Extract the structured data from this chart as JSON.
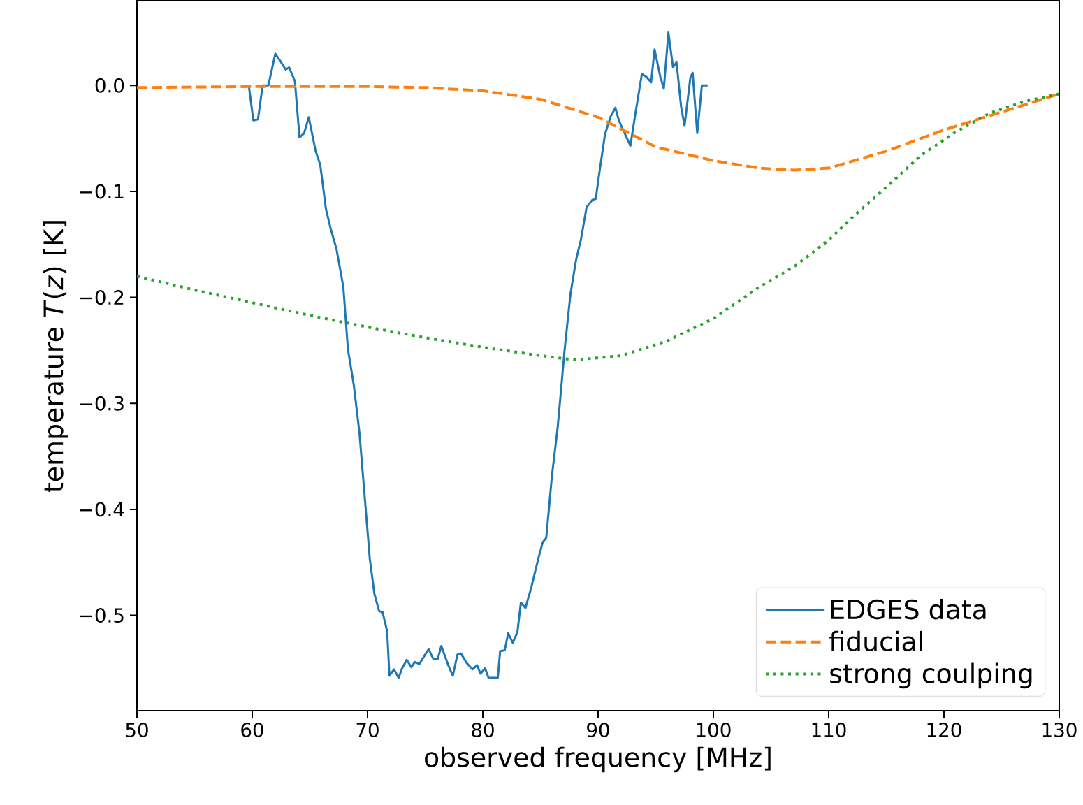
{
  "chart_data": {
    "type": "line",
    "xlabel": "observed frequency [MHz]",
    "ylabel": "temperature *T*(*z*) [K]",
    "xlim": [
      50,
      130
    ],
    "xticks": [
      50,
      60,
      70,
      80,
      90,
      100,
      110,
      120,
      130
    ],
    "ylim": [
      -0.59,
      0.08
    ],
    "yticks": [
      {
        "value": 0,
        "label": "0.0"
      },
      {
        "value": -0.1,
        "label": "−0.1"
      },
      {
        "value": -0.2,
        "label": "−0.2"
      },
      {
        "value": -0.3,
        "label": "−0.3"
      },
      {
        "value": -0.4,
        "label": "−0.4"
      },
      {
        "value": -0.5,
        "label": "−0.5"
      }
    ],
    "grid": false,
    "legend": "bottom right",
    "series": [
      {
        "name": "EDGES data",
        "color": "#1f77b4",
        "line_style": "solid",
        "x": [
          59.7,
          60.1,
          60.5,
          60.9,
          61.4,
          62.0,
          62.5,
          62.9,
          63.2,
          63.7,
          64.1,
          64.5,
          64.9,
          65.5,
          65.9,
          66.4,
          66.8,
          67.3,
          67.9,
          68.3,
          68.8,
          69.3,
          69.8,
          70.2,
          70.6,
          71.0,
          71.3,
          71.7,
          71.9,
          72.3,
          72.7,
          73.0,
          73.4,
          73.8,
          74.1,
          74.5,
          75.0,
          75.3,
          75.7,
          76.1,
          76.4,
          77.0,
          77.4,
          77.8,
          78.1,
          78.6,
          79.1,
          79.5,
          79.8,
          80.2,
          80.5,
          81.3,
          81.5,
          81.9,
          82.2,
          82.6,
          83.0,
          83.3,
          83.7,
          84.2,
          84.8,
          85.2,
          85.5,
          86.0,
          86.5,
          87.1,
          87.6,
          88.1,
          88.5,
          89.0,
          89.5,
          89.8,
          90.1,
          90.6,
          91.1,
          91.5,
          91.8,
          92.3,
          92.8,
          93.2,
          93.8,
          94.2,
          94.6,
          94.9,
          95.4,
          95.7,
          96.1,
          96.5,
          96.8,
          97.2,
          97.5,
          98.0,
          98.2,
          98.6,
          99.0,
          99.5
        ],
        "values": [
          0.0,
          -0.033,
          -0.032,
          0.0,
          0.0,
          0.03,
          0.022,
          0.015,
          0.017,
          0.004,
          -0.049,
          -0.045,
          -0.03,
          -0.062,
          -0.075,
          -0.117,
          -0.135,
          -0.154,
          -0.19,
          -0.249,
          -0.282,
          -0.328,
          -0.394,
          -0.447,
          -0.48,
          -0.496,
          -0.497,
          -0.515,
          -0.557,
          -0.551,
          -0.559,
          -0.55,
          -0.542,
          -0.549,
          -0.544,
          -0.546,
          -0.537,
          -0.532,
          -0.541,
          -0.541,
          -0.529,
          -0.547,
          -0.557,
          -0.537,
          -0.536,
          -0.545,
          -0.551,
          -0.547,
          -0.555,
          -0.55,
          -0.559,
          -0.559,
          -0.534,
          -0.533,
          -0.517,
          -0.526,
          -0.516,
          -0.488,
          -0.493,
          -0.474,
          -0.447,
          -0.431,
          -0.427,
          -0.368,
          -0.322,
          -0.249,
          -0.197,
          -0.164,
          -0.146,
          -0.115,
          -0.108,
          -0.107,
          -0.083,
          -0.046,
          -0.029,
          -0.021,
          -0.033,
          -0.045,
          -0.057,
          -0.029,
          0.011,
          0.008,
          0.003,
          0.034,
          0.008,
          -0.003,
          0.05,
          0.017,
          0.022,
          -0.02,
          -0.038,
          0.007,
          0.012,
          -0.045,
          0.0,
          0.0
        ]
      },
      {
        "name": "fiducial",
        "color": "#ff7f0e",
        "line_style": "dashed",
        "x": [
          50,
          60,
          70,
          75,
          80,
          85,
          90,
          95,
          100,
          104,
          107,
          110,
          115,
          120,
          125,
          130
        ],
        "values": [
          -0.002,
          -0.001,
          -0.001,
          -0.002,
          -0.005,
          -0.013,
          -0.03,
          -0.058,
          -0.071,
          -0.078,
          -0.08,
          -0.078,
          -0.062,
          -0.042,
          -0.025,
          -0.008
        ]
      },
      {
        "name": "strong coulping",
        "color": "#2ca02c",
        "line_style": "dotted",
        "x": [
          50,
          55,
          60,
          65,
          70,
          75,
          80,
          85,
          88,
          92,
          96,
          100,
          104,
          107,
          110,
          112,
          115,
          118,
          121,
          124,
          127,
          130
        ],
        "values": [
          -0.18,
          -0.193,
          -0.205,
          -0.217,
          -0.228,
          -0.238,
          -0.247,
          -0.255,
          -0.259,
          -0.255,
          -0.241,
          -0.22,
          -0.19,
          -0.171,
          -0.146,
          -0.125,
          -0.096,
          -0.066,
          -0.044,
          -0.026,
          -0.015,
          -0.008
        ]
      }
    ]
  }
}
